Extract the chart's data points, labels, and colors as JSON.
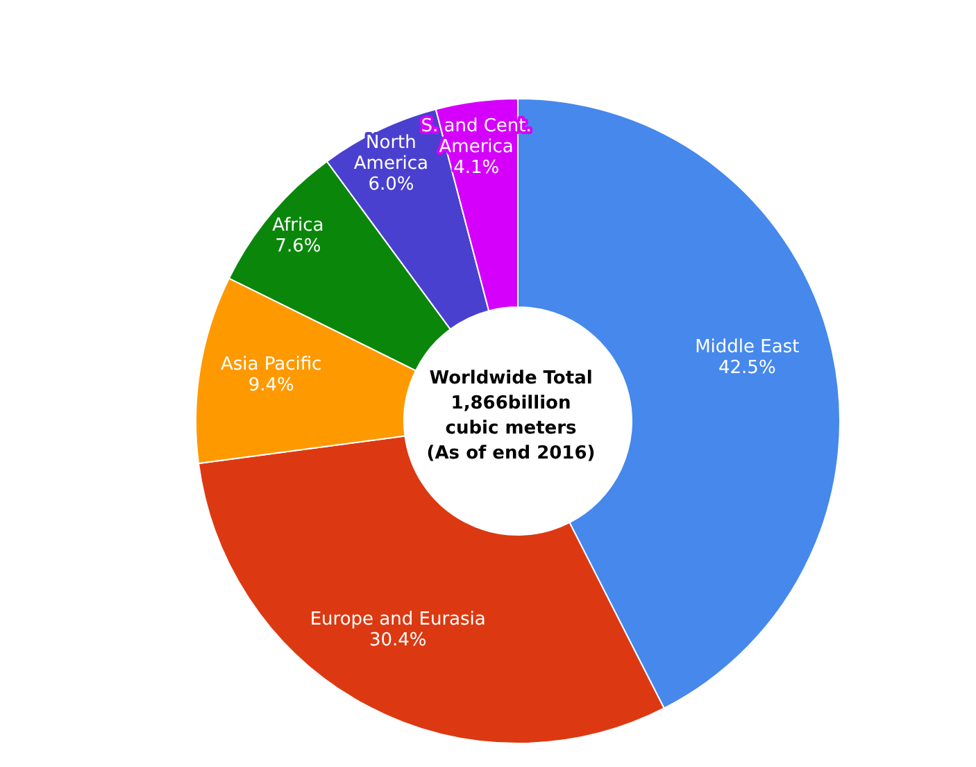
{
  "chart_data": {
    "type": "donut",
    "categories": [
      "Middle East",
      "Europe and Eurasia",
      "Asia Pacific",
      "Africa",
      "North America",
      "S. and Cent. America"
    ],
    "values": [
      42.5,
      30.4,
      9.4,
      7.6,
      6.0,
      4.1
    ],
    "value_labels": [
      "42.5%",
      "30.4%",
      "9.4%",
      "7.6%",
      "6.0%",
      "4.1%"
    ],
    "colors": [
      "#4688ec",
      "#dc3912",
      "#ff9900",
      "#0a870a",
      "#4a40cf",
      "#d500fc"
    ],
    "annotations": [
      "Worldwide Total",
      "1,866billion",
      "cubic meters",
      "(As of end 2016)"
    ],
    "legend": false
  }
}
